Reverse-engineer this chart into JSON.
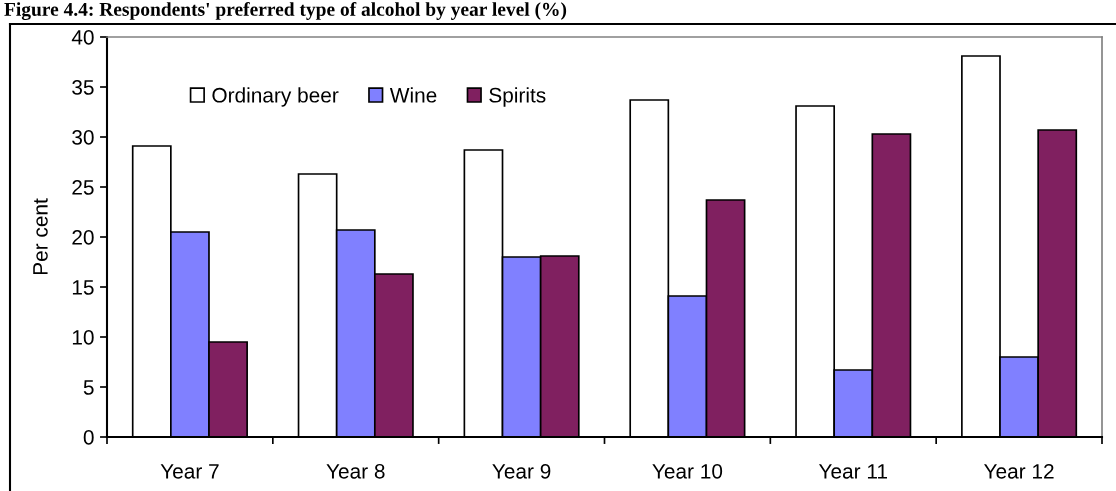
{
  "chart_data": {
    "type": "bar",
    "title": "Figure 4.4: Respondents' preferred type of alcohol by year level (%)",
    "ylabel": "Per cent",
    "categories": [
      "Year 7",
      "Year 8",
      "Year 9",
      "Year 10",
      "Year 11",
      "Year 12"
    ],
    "series": [
      {
        "name": "Ordinary beer",
        "color": "#ffffff",
        "values": [
          29.1,
          26.3,
          28.7,
          33.7,
          33.1,
          38.1
        ]
      },
      {
        "name": "Wine",
        "color": "#8080ff",
        "values": [
          20.5,
          20.7,
          18.0,
          14.1,
          6.7,
          8.0
        ]
      },
      {
        "name": "Spirits",
        "color": "#802060",
        "values": [
          9.5,
          16.3,
          18.1,
          23.7,
          30.3,
          30.7
        ]
      }
    ],
    "ylim": [
      0,
      40
    ],
    "yticks": [
      0,
      5,
      10,
      15,
      20,
      25,
      30,
      35,
      40
    ],
    "grid": false,
    "legend": "top left"
  }
}
